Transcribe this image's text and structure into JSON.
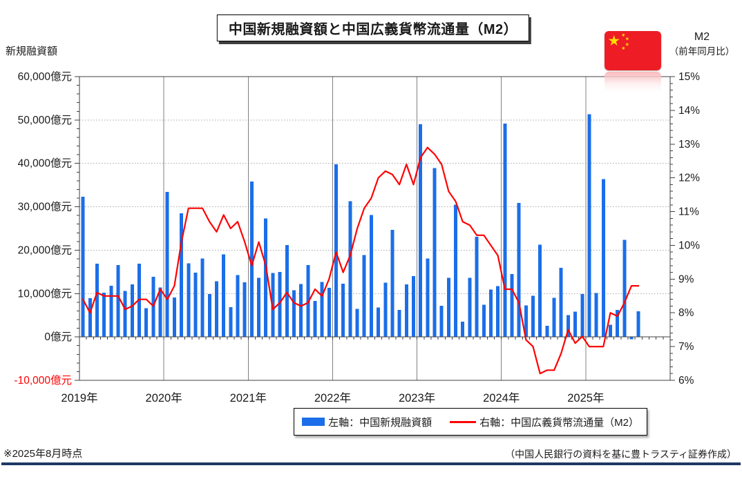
{
  "title": "中国新規融資額と中国広義貨幣流通量（M2）",
  "left_axis": {
    "title": "新規融資額",
    "tick_labels": [
      "60,000億元",
      "50,000億元",
      "40,000億元",
      "30,000億元",
      "20,000億元",
      "10,000億元",
      "0億元",
      "-10,000億元"
    ]
  },
  "right_axis": {
    "title_line1": "M2",
    "title_line2": "（前年同月比）",
    "tick_labels": [
      "15%",
      "14%",
      "13%",
      "12%",
      "11%",
      "10%",
      "9%",
      "8%",
      "7%",
      "6%"
    ]
  },
  "legend": {
    "bar_label": "左軸：中国新規融資額",
    "line_label": "右軸：中国広義貨幣流通量（M2）"
  },
  "footnote_left": "※2025年8月時点",
  "footnote_right": "（中国人民銀行の資料を基に豊トラスティ証券作成）",
  "colors": {
    "bar": "#1b6ee8",
    "line": "#ff0000",
    "grid_dotted": "#a6a6a6",
    "grid_year": "#808080",
    "axis": "#3f3f3f",
    "tick_text": "#1a1a1a",
    "negative_tick_text": "#ff0000",
    "footer_rule": "#1f3864",
    "flag_red": "#ee1c25",
    "flag_yellow": "#ffde00"
  },
  "chart_data": {
    "type": "bar",
    "note": "monthly data Jan 2019 - Aug 2025; bars on left axis (億元), line on right axis (% YoY)",
    "x_start": "2019-01",
    "x_end": "2025-08",
    "x_slots_total": 84,
    "x_year_labels": [
      "2019年",
      "2020年",
      "2021年",
      "2022年",
      "2023年",
      "2024年",
      "2025年"
    ],
    "left_ylim": [
      -10000,
      60000
    ],
    "right_ylim": [
      6,
      15
    ],
    "grid": "horizontal dotted every 10000, vertical solid at year starts",
    "legend_position": "bottom center boxed",
    "series": [
      {
        "name": "左軸：中国新規融資額",
        "type": "bar",
        "axis": "left",
        "unit": "億元",
        "values": [
          32300,
          8900,
          16900,
          10200,
          11800,
          16600,
          10600,
          12100,
          16900,
          6600,
          13900,
          11400,
          33400,
          9100,
          28500,
          17000,
          14800,
          18100,
          9900,
          12800,
          19000,
          6900,
          14300,
          12600,
          35800,
          13600,
          27300,
          14700,
          15000,
          21200,
          10800,
          12200,
          16600,
          8300,
          12700,
          11300,
          39800,
          12300,
          31300,
          6500,
          18900,
          28100,
          6800,
          12500,
          24700,
          6200,
          12100,
          14000,
          49000,
          18100,
          38900,
          7200,
          13600,
          30500,
          3500,
          13600,
          23100,
          7400,
          10900,
          11700,
          49200,
          14500,
          30900,
          7300,
          9500,
          21300,
          2600,
          9000,
          15900,
          5000,
          5800,
          9900,
          51300,
          10100,
          36400,
          2800,
          6200,
          22400,
          -500,
          5900
        ]
      },
      {
        "name": "右軸：中国広義貨幣流通量（M2）",
        "type": "line",
        "axis": "right",
        "unit": "%",
        "values": [
          8.4,
          8.0,
          8.6,
          8.5,
          8.5,
          8.5,
          8.1,
          8.2,
          8.4,
          8.4,
          8.2,
          8.7,
          8.4,
          8.8,
          10.1,
          11.1,
          11.1,
          11.1,
          10.7,
          10.4,
          10.9,
          10.5,
          10.7,
          10.1,
          9.4,
          10.1,
          9.4,
          8.1,
          8.3,
          8.6,
          8.3,
          8.2,
          8.3,
          8.7,
          8.5,
          9.0,
          9.8,
          9.2,
          9.7,
          10.5,
          11.1,
          11.4,
          12.0,
          12.2,
          12.1,
          11.8,
          12.4,
          11.8,
          12.6,
          12.9,
          12.7,
          12.4,
          11.6,
          11.3,
          10.7,
          10.6,
          10.3,
          10.3,
          10.0,
          9.7,
          8.7,
          8.7,
          8.3,
          7.2,
          7.0,
          6.2,
          6.3,
          6.3,
          6.8,
          7.5,
          7.1,
          7.3,
          7.0,
          7.0,
          7.0,
          8.0,
          7.9,
          8.3,
          8.8,
          8.8
        ]
      }
    ]
  }
}
